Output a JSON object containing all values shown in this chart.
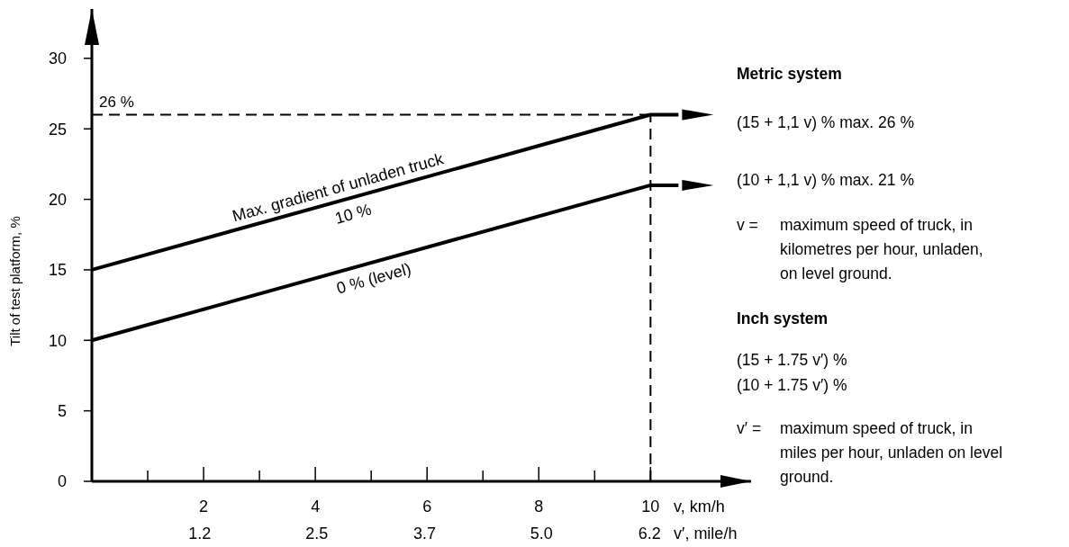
{
  "chart_data": {
    "type": "line",
    "ylabel": "Tilt of test platform, %",
    "xlabel": "v, km/h",
    "x2label": "v′, mile/h",
    "xlim": [
      0,
      11.8
    ],
    "ylim": [
      0,
      33.5
    ],
    "xticks": [
      {
        "value": 1,
        "label": null
      },
      2,
      {
        "value": 3,
        "label": null
      },
      4,
      {
        "value": 5,
        "label": null
      },
      6,
      {
        "value": 7,
        "label": null
      },
      8,
      {
        "value": 9,
        "label": null
      },
      10
    ],
    "x2lim": [
      0,
      7.33
    ],
    "x2ticks": [
      {
        "value": 1.2,
        "label": "1.2"
      },
      {
        "value": 2.5,
        "label": "2.5"
      },
      {
        "value": 3.7,
        "label": "3.7"
      },
      {
        "value": 5.0,
        "label": "5.0"
      },
      {
        "value": 6.2,
        "label": "6.2"
      }
    ],
    "yticks": [
      0,
      5,
      10,
      15,
      20,
      25,
      30
    ],
    "grid": false,
    "marker": "none",
    "line_style": "solid",
    "series": [
      {
        "color": "#000000",
        "x": [
          0,
          10,
          10.5
        ],
        "values": [
          15,
          26,
          26
        ]
      },
      {
        "color": "#000000",
        "x": [
          0,
          10,
          10.5
        ],
        "values": [
          10,
          21,
          21
        ]
      }
    ],
    "ref_lines": [
      {
        "axis": "y",
        "value": 26,
        "label": "26 %",
        "line_style": "dashed",
        "color": "#000000"
      },
      {
        "axis": "x",
        "value": 10,
        "line_style": "dashed",
        "color": "#000000"
      }
    ],
    "annotations": [
      "Max. gradient of unladen truck",
      "10 %",
      "0 % (level)",
      "Metric system",
      "(15 + 1,1 v) % max. 26 %",
      "(10 + 1,1 v) % max. 21 %",
      "v = maximum speed of truck, in kilometres per hour, unladen, on level ground.",
      "Inch system",
      "(15 + 1.75 v′) %",
      "(10 + 1.75 v′) %",
      "v′ = maximum speed of truck, in miles per hour, unladen on level ground."
    ]
  }
}
